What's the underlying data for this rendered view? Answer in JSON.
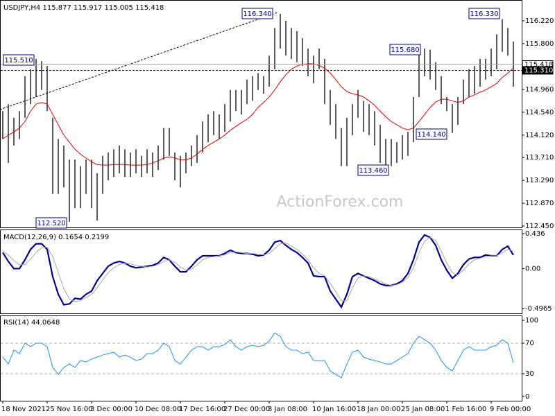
{
  "chart_data": [
    {
      "type": "ohlc",
      "title": "USDJPY,H4  115.877 115.917 115.005 115.418",
      "watermark": "ActionForex.com",
      "bars": {
        "color": "#000000",
        "high": [
          114.56,
          114.69,
          114.44,
          114.56,
          115.2,
          115.33,
          115.52,
          115.48,
          115.39,
          114.44,
          114.05,
          113.93,
          113.67,
          113.67,
          113.55,
          113.67,
          113.67,
          113.42,
          113.74,
          113.8,
          113.86,
          113.93,
          113.86,
          113.8,
          113.86,
          113.74,
          113.86,
          113.8,
          113.93,
          114.25,
          114.25,
          113.8,
          113.74,
          113.8,
          113.93,
          114.12,
          114.37,
          114.5,
          114.56,
          114.5,
          114.69,
          114.95,
          114.95,
          114.95,
          115.14,
          115.2,
          115.26,
          115.2,
          115.58,
          116.09,
          116.35,
          116.22,
          116.09,
          116.03,
          115.9,
          115.71,
          115.58,
          115.71,
          115.52,
          114.95,
          114.69,
          114.25,
          114.44,
          114.69,
          114.95,
          114.75,
          114.69,
          114.56,
          114.31,
          114.05,
          114.05,
          113.99,
          114.12,
          114.18,
          114.82,
          115.65,
          115.71,
          115.69,
          115.46,
          115.2,
          114.82,
          114.69,
          114.82,
          115.14,
          115.33,
          115.39,
          115.52,
          115.52,
          115.71,
          115.97,
          116.25,
          116.09,
          115.84
        ],
        "low": [
          114.05,
          113.61,
          113.93,
          114.05,
          114.44,
          114.69,
          114.82,
          114.95,
          114.56,
          113.04,
          113.04,
          113.16,
          112.53,
          112.78,
          112.78,
          113.04,
          112.78,
          112.55,
          113.04,
          113.29,
          113.35,
          113.42,
          113.35,
          113.35,
          113.42,
          113.35,
          113.42,
          113.35,
          113.48,
          113.67,
          113.74,
          113.29,
          113.16,
          113.42,
          113.55,
          113.61,
          113.8,
          113.99,
          114.12,
          114.05,
          114.18,
          114.37,
          114.56,
          114.5,
          114.69,
          114.75,
          114.95,
          114.88,
          115.01,
          115.33,
          115.71,
          115.58,
          115.52,
          115.46,
          115.39,
          115.2,
          115.07,
          115.33,
          114.69,
          114.31,
          114.05,
          113.55,
          113.55,
          114.12,
          114.44,
          114.18,
          114.12,
          113.93,
          113.61,
          113.55,
          113.55,
          113.61,
          113.67,
          113.74,
          113.99,
          114.82,
          115.2,
          115.14,
          114.95,
          114.69,
          114.56,
          114.16,
          114.31,
          114.69,
          114.82,
          114.88,
          115.01,
          115.14,
          115.2,
          115.33,
          115.65,
          115.58,
          115.01
        ]
      },
      "series": [
        {
          "color": "#e00000",
          "values": [
            114.05,
            114.12,
            114.18,
            114.25,
            114.37,
            114.56,
            114.69,
            114.72,
            114.69,
            114.5,
            114.31,
            114.12,
            113.99,
            113.86,
            113.77,
            113.7,
            113.63,
            113.58,
            113.57,
            113.57,
            113.58,
            113.58,
            113.58,
            113.57,
            113.57,
            113.57,
            113.58,
            113.61,
            113.65,
            113.7,
            113.72,
            113.7,
            113.67,
            113.67,
            113.7,
            113.77,
            113.86,
            113.93,
            113.99,
            114.05,
            114.12,
            114.21,
            114.28,
            114.35,
            114.41,
            114.5,
            114.63,
            114.72,
            114.82,
            114.95,
            115.1,
            115.23,
            115.33,
            115.39,
            115.42,
            115.43,
            115.43,
            115.4,
            115.35,
            115.26,
            115.14,
            115.01,
            114.92,
            114.88,
            114.86,
            114.82,
            114.75,
            114.67,
            114.56,
            114.46,
            114.37,
            114.31,
            114.25,
            114.22,
            114.25,
            114.37,
            114.5,
            114.63,
            114.73,
            114.78,
            114.78,
            114.75,
            114.72,
            114.75,
            114.82,
            114.86,
            114.91,
            114.95,
            115.01,
            115.07,
            115.18,
            115.26,
            115.35
          ]
        }
      ],
      "ylim": [
        112.425,
        116.602
      ],
      "yticks": [
        {
          "value": 116.22,
          "label": "116.220"
        },
        {
          "value": 115.8,
          "label": "115.800"
        },
        {
          "value": 114.96,
          "label": "114.960"
        },
        {
          "value": 114.54,
          "label": "114.540"
        },
        {
          "value": 114.12,
          "label": "114.120"
        },
        {
          "value": 113.71,
          "label": "113.710"
        },
        {
          "value": 113.29,
          "label": "113.290"
        },
        {
          "value": 112.87,
          "label": "112.870"
        },
        {
          "value": 112.45,
          "label": "112.450"
        }
      ],
      "price_lines": [
        {
          "value": 115.418,
          "label": "115.418"
        },
        {
          "value": 115.31,
          "label": "115.310"
        }
      ],
      "annotations": [
        "116.340",
        "115.510",
        "112.520",
        "113.460",
        "115.680",
        "114.140",
        "116.330"
      ]
    },
    {
      "type": "line",
      "title": "MACD(12,26,9) 0.1654 0.2199",
      "series": [
        {
          "color": "#00008b",
          "values": [
            0.2,
            0.09,
            0,
            0,
            0.11,
            0.24,
            0.31,
            0.31,
            0.24,
            -0.1,
            -0.32,
            -0.45,
            -0.44,
            -0.37,
            -0.38,
            -0.32,
            -0.28,
            -0.15,
            -0.06,
            0.03,
            0.07,
            0.09,
            0.07,
            0.03,
            0.01,
            0.02,
            0.03,
            0.04,
            0.07,
            0.14,
            0.11,
            0.03,
            -0.04,
            -0.04,
            0.03,
            0.11,
            0.16,
            0.16,
            0.16,
            0.16,
            0.19,
            0.23,
            0.2,
            0.19,
            0.19,
            0.18,
            0.16,
            0.17,
            0.23,
            0.33,
            0.35,
            0.29,
            0.24,
            0.2,
            0.14,
            0.07,
            -0.09,
            -0.1,
            -0.1,
            -0.28,
            -0.38,
            -0.48,
            -0.32,
            -0.1,
            -0.06,
            -0.09,
            -0.12,
            -0.15,
            -0.19,
            -0.21,
            -0.21,
            -0.19,
            -0.15,
            -0.06,
            0.11,
            0.33,
            0.42,
            0.39,
            0.29,
            0.11,
            -0.02,
            -0.12,
            -0.06,
            0.05,
            0.12,
            0.14,
            0.14,
            0.17,
            0.16,
            0.16,
            0.24,
            0.28,
            0.17
          ]
        },
        {
          "color": "#a8a8a8",
          "values": [
            0.22,
            0.17,
            0.1,
            0.05,
            0.05,
            0.12,
            0.2,
            0.26,
            0.27,
            0.15,
            -0.05,
            -0.25,
            -0.38,
            -0.41,
            -0.4,
            -0.36,
            -0.32,
            -0.24,
            -0.14,
            -0.05,
            0.01,
            0.05,
            0.07,
            0.06,
            0.04,
            0.03,
            0.02,
            0.03,
            0.05,
            0.09,
            0.11,
            0.08,
            0.02,
            -0.02,
            -0.01,
            0.05,
            0.11,
            0.14,
            0.15,
            0.16,
            0.17,
            0.2,
            0.21,
            0.2,
            0.19,
            0.19,
            0.18,
            0.17,
            0.19,
            0.25,
            0.31,
            0.32,
            0.28,
            0.24,
            0.18,
            0.11,
            0.01,
            -0.06,
            -0.09,
            -0.18,
            -0.29,
            -0.4,
            -0.4,
            -0.24,
            -0.12,
            -0.09,
            -0.1,
            -0.13,
            -0.16,
            -0.19,
            -0.21,
            -0.2,
            -0.17,
            -0.11,
            0.01,
            0.2,
            0.34,
            0.39,
            0.35,
            0.22,
            0.07,
            -0.05,
            -0.08,
            -0.02,
            0.06,
            0.11,
            0.13,
            0.15,
            0.16,
            0.16,
            0.2,
            0.24,
            0.22
          ]
        }
      ],
      "ylim": [
        -0.558,
        0.488
      ],
      "yticks": [
        0.436,
        {
          "value": 0,
          "label": "0.00"
        },
        -0.4965
      ]
    },
    {
      "type": "line",
      "title": "RSI(14) 44.0648",
      "categories": [
        "18 Nov 2021",
        null,
        null,
        null,
        null,
        null,
        null,
        null,
        "25 Nov 16:00",
        null,
        null,
        null,
        null,
        null,
        null,
        null,
        "3 Dec 00:00",
        null,
        null,
        null,
        null,
        null,
        null,
        null,
        "10 Dec 08:00",
        null,
        null,
        null,
        null,
        null,
        null,
        null,
        "17 Dec 16:00",
        null,
        null,
        null,
        null,
        null,
        null,
        null,
        "27 Dec 00:00",
        null,
        null,
        null,
        null,
        null,
        null,
        null,
        "3 Jan 08:00",
        null,
        null,
        null,
        null,
        null,
        null,
        null,
        "10 Jan 16:00",
        null,
        null,
        null,
        null,
        null,
        null,
        null,
        "18 Jan 00:00",
        null,
        null,
        null,
        null,
        null,
        null,
        null,
        "25 Jan 08:00",
        null,
        null,
        null,
        null,
        null,
        null,
        null,
        "1 Feb 16:00",
        null,
        null,
        null,
        null,
        null,
        null,
        null,
        "9 Feb 00:00",
        null,
        null,
        null,
        null
      ],
      "series": [
        {
          "color": "#1e90ff",
          "values": [
            51.8,
            42.7,
            60.9,
            56.4,
            70,
            65.5,
            70,
            70,
            65.5,
            38.2,
            29.1,
            38.2,
            42.7,
            38.2,
            47.3,
            45.5,
            49.1,
            51.8,
            54.5,
            56.4,
            58.2,
            51.8,
            54.5,
            51.8,
            47.3,
            49.1,
            56.4,
            56.4,
            60.9,
            70,
            65.5,
            47.3,
            42.7,
            51.8,
            60.9,
            65.5,
            65.5,
            60.9,
            65.5,
            65.5,
            68.2,
            74.5,
            65.5,
            60.9,
            65.5,
            67.3,
            65.5,
            67.3,
            72.7,
            83.6,
            79.1,
            65.5,
            60.9,
            60.9,
            56.4,
            58.2,
            47.3,
            47.3,
            47.3,
            33.6,
            29.1,
            24.5,
            42.7,
            58.2,
            60.9,
            51.8,
            49.1,
            47.3,
            45.5,
            42.7,
            42.7,
            47.3,
            51.8,
            56.4,
            70,
            79.1,
            74.5,
            70,
            60.9,
            47.3,
            38.2,
            33.6,
            47.3,
            60.9,
            65.5,
            60.9,
            60.9,
            60.9,
            65.5,
            67.3,
            74.5,
            70,
            44.1
          ]
        }
      ],
      "ylim": [
        -5.5,
        106.4
      ],
      "yticks": [
        100,
        70,
        30,
        0
      ],
      "levels": [
        70,
        30
      ]
    }
  ]
}
